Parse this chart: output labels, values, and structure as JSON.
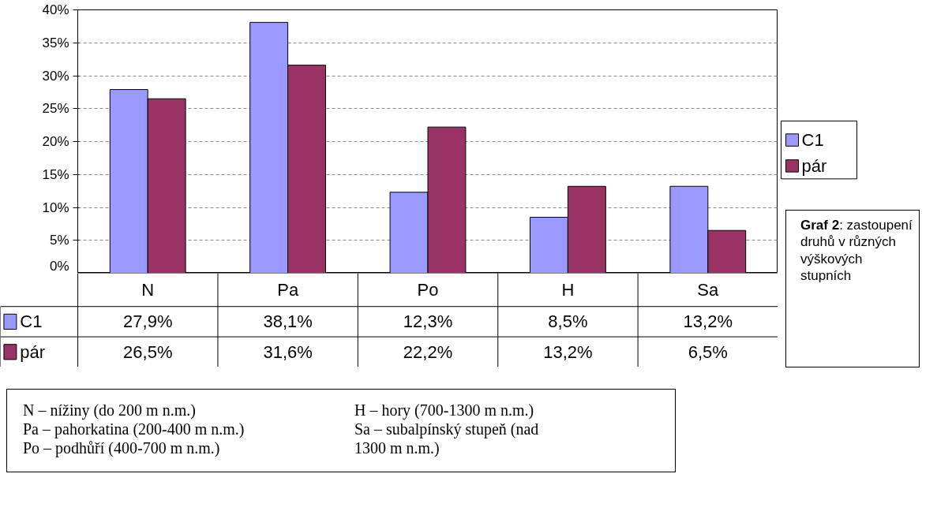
{
  "chart_data": {
    "type": "bar",
    "categories": [
      "N",
      "Pa",
      "Po",
      "H",
      "Sa"
    ],
    "series": [
      {
        "name": "C1",
        "color": "#9999ff",
        "values": [
          27.9,
          38.1,
          12.3,
          8.5,
          13.2
        ],
        "value_labels": [
          "27,9%",
          "38,1%",
          "12,3%",
          "8,5%",
          "13,2%"
        ]
      },
      {
        "name": "pár",
        "color": "#993366",
        "values": [
          26.5,
          31.6,
          22.2,
          13.2,
          6.5
        ],
        "value_labels": [
          "26,5%",
          "31,6%",
          "22,2%",
          "13,2%",
          "6,5%"
        ]
      }
    ],
    "ylim": [
      0,
      40
    ],
    "yticks": [
      {
        "value": 0,
        "label": "0%"
      },
      {
        "value": 5,
        "label": "5%"
      },
      {
        "value": 10,
        "label": "10%"
      },
      {
        "value": 15,
        "label": "15%"
      },
      {
        "value": 20,
        "label": "20%"
      },
      {
        "value": 25,
        "label": "25%"
      },
      {
        "value": 30,
        "label": "30%"
      },
      {
        "value": 35,
        "label": "35%"
      },
      {
        "value": 40,
        "label": "40%"
      }
    ],
    "grid": "y",
    "legend": "right",
    "annotations": [
      "Graf 2: zastoupení druhů v různých výškových stupních",
      "N – nížiny (do 200 m n.m.)",
      "Pa – pahorkatina (200-400 m n.m.)",
      "Po – podhůří (400-700 m n.m.)",
      "H – hory (700-1300 m n.m.)",
      "Sa – subalpínský stupeň (nad 1300 m n.m.)"
    ]
  }
}
